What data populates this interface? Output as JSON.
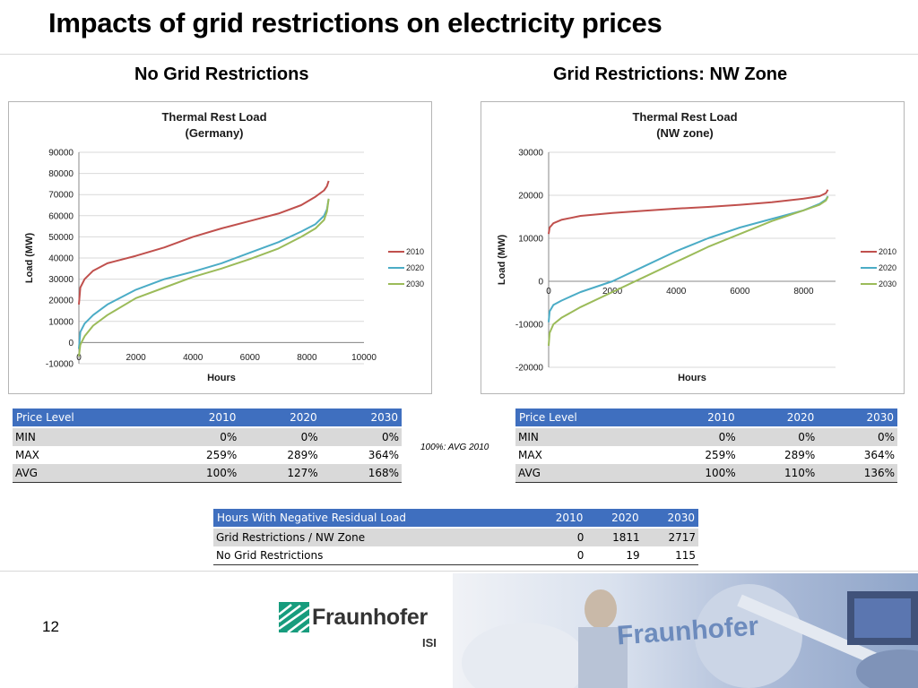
{
  "page": {
    "title": "Impacts of grid restrictions on electricity prices",
    "left_heading": "No Grid Restrictions",
    "right_heading": "Grid Restrictions: NW Zone",
    "note": "100%: AVG 2010",
    "page_number": "12",
    "logo_text": "Fraunhofer",
    "logo_sub": "ISI",
    "photo_watermark": "Fraunhofer"
  },
  "chart_data": [
    {
      "type": "line",
      "title": [
        "Thermal Rest Load",
        "(Germany)"
      ],
      "xlabel": "Hours",
      "ylabel": "Load (MW)",
      "xlim": [
        0,
        10000
      ],
      "ylim": [
        -10000,
        90000
      ],
      "xticks": [
        0,
        2000,
        4000,
        6000,
        8000,
        10000
      ],
      "yticks": [
        -10000,
        0,
        10000,
        20000,
        30000,
        40000,
        50000,
        60000,
        70000,
        80000,
        90000
      ],
      "grid": true,
      "legend_position": "right",
      "series": [
        {
          "name": "2010",
          "color": "#c0504d",
          "x": [
            0,
            50,
            200,
            500,
            1000,
            2000,
            3000,
            4000,
            5000,
            6000,
            7000,
            7800,
            8300,
            8600,
            8700,
            8760
          ],
          "y": [
            18000,
            26000,
            30000,
            34000,
            37500,
            41000,
            45000,
            50000,
            54000,
            57500,
            61000,
            65000,
            69000,
            72000,
            74000,
            76500
          ]
        },
        {
          "name": "2020",
          "color": "#4bacc6",
          "x": [
            0,
            50,
            200,
            500,
            1000,
            2000,
            3000,
            4000,
            5000,
            6000,
            7000,
            7800,
            8300,
            8600,
            8700,
            8760
          ],
          "y": [
            -3000,
            5000,
            9000,
            13000,
            18000,
            25000,
            30000,
            33500,
            37500,
            42500,
            47500,
            52500,
            56000,
            60000,
            63000,
            68000
          ]
        },
        {
          "name": "2030",
          "color": "#9bbb59",
          "x": [
            0,
            50,
            200,
            500,
            1000,
            2000,
            3000,
            4000,
            5000,
            6000,
            7000,
            7800,
            8300,
            8600,
            8700,
            8760
          ],
          "y": [
            -6500,
            -1000,
            3000,
            8000,
            13000,
            21000,
            26000,
            31000,
            35000,
            39500,
            44500,
            50000,
            54000,
            58000,
            62000,
            68000
          ]
        }
      ]
    },
    {
      "type": "line",
      "title": [
        "Thermal Rest Load",
        "(NW zone)"
      ],
      "xlabel": "Hours",
      "ylabel": "Load (MW)",
      "xlim": [
        0,
        9000
      ],
      "ylim": [
        -20000,
        30000
      ],
      "xticks": [
        0,
        2000,
        4000,
        6000,
        8000
      ],
      "yticks": [
        -20000,
        -10000,
        0,
        10000,
        20000,
        30000
      ],
      "grid": true,
      "legend_position": "right",
      "series": [
        {
          "name": "2010",
          "color": "#c0504d",
          "x": [
            0,
            30,
            150,
            400,
            1000,
            2000,
            3000,
            4000,
            5000,
            6000,
            7000,
            8000,
            8500,
            8700,
            8760
          ],
          "y": [
            11000,
            12500,
            13500,
            14300,
            15200,
            15900,
            16400,
            16900,
            17300,
            17800,
            18400,
            19200,
            19800,
            20500,
            21300
          ]
        },
        {
          "name": "2020",
          "color": "#4bacc6",
          "x": [
            0,
            30,
            150,
            400,
            1000,
            2000,
            3000,
            4000,
            5000,
            6000,
            7000,
            8000,
            8500,
            8700,
            8760
          ],
          "y": [
            -9500,
            -7000,
            -5500,
            -4500,
            -2500,
            0,
            3500,
            7000,
            10000,
            12500,
            14500,
            16500,
            18000,
            19000,
            19800
          ]
        },
        {
          "name": "2030",
          "color": "#9bbb59",
          "x": [
            0,
            30,
            150,
            400,
            1000,
            2000,
            3000,
            4000,
            5000,
            6000,
            7000,
            8000,
            8500,
            8700,
            8760
          ],
          "y": [
            -15000,
            -12000,
            -10000,
            -8500,
            -6000,
            -2500,
            1000,
            4500,
            8000,
            11000,
            14000,
            16500,
            17800,
            18800,
            19700
          ]
        }
      ]
    }
  ],
  "tables": {
    "left": {
      "headers": [
        "Price Level",
        "2010",
        "2020",
        "2030"
      ],
      "rows": [
        [
          "MIN",
          "0%",
          "0%",
          "0%"
        ],
        [
          "MAX",
          "259%",
          "289%",
          "364%"
        ],
        [
          "AVG",
          "100%",
          "127%",
          "168%"
        ]
      ]
    },
    "right": {
      "headers": [
        "Price Level",
        "2010",
        "2020",
        "2030"
      ],
      "rows": [
        [
          "MIN",
          "0%",
          "0%",
          "0%"
        ],
        [
          "MAX",
          "259%",
          "289%",
          "364%"
        ],
        [
          "AVG",
          "100%",
          "110%",
          "136%"
        ]
      ]
    },
    "bottom": {
      "headers": [
        "Hours With Negative Residual Load",
        "2010",
        "2020",
        "2030"
      ],
      "rows": [
        [
          "Grid Restrictions / NW Zone",
          "0",
          "1811",
          "2717"
        ],
        [
          "No Grid Restrictions",
          "0",
          "19",
          "115"
        ]
      ]
    }
  }
}
